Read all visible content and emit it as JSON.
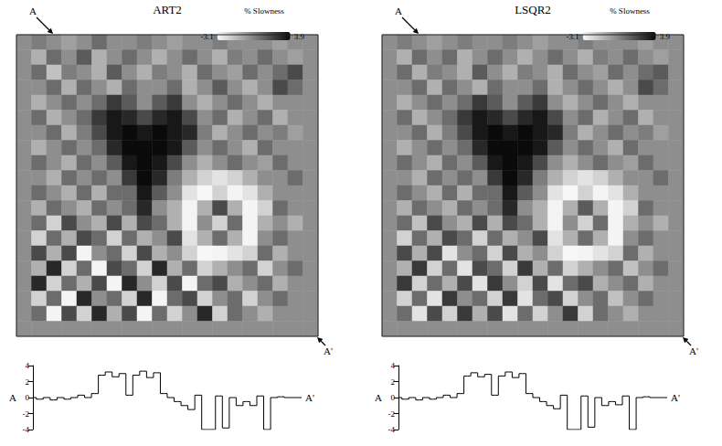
{
  "chart_data": [
    {
      "type": "heatmap",
      "title": "ART2",
      "tick_labels": false,
      "profile_ends": [
        "A",
        "A'"
      ],
      "colorbar": {
        "label": "% Slowness",
        "range": [
          -3.1,
          3.9
        ],
        "colors": [
          "#f7f7f7",
          "#0a0a0a"
        ]
      },
      "cells": [
        [
          0,
          0.5,
          0,
          -0.5,
          0,
          1,
          0,
          0,
          0.5,
          0,
          -0.5,
          0,
          0,
          0.5,
          0,
          0,
          0,
          -0.5,
          0,
          0
        ],
        [
          0,
          -1,
          1,
          0,
          1.5,
          -1,
          0,
          1,
          0,
          -1,
          0,
          1,
          0,
          -1,
          0.5,
          0,
          1,
          0,
          -0.5,
          0
        ],
        [
          0,
          1,
          -1.5,
          0.5,
          0,
          -1,
          1.5,
          0,
          -1,
          0.5,
          0,
          -1,
          1,
          0,
          -0.5,
          1,
          0,
          1,
          2,
          0
        ],
        [
          0,
          0,
          1,
          -1,
          1,
          0,
          -1,
          1,
          0,
          0,
          1,
          -1,
          0,
          1.5,
          0,
          -1,
          0,
          2,
          1,
          0
        ],
        [
          0,
          -1,
          0,
          1,
          0,
          1,
          2.5,
          1.5,
          0,
          1.5,
          2.5,
          0,
          -1,
          0,
          1,
          0,
          -1,
          0,
          0,
          0
        ],
        [
          0,
          1,
          -1,
          0,
          1,
          2.5,
          3.5,
          3,
          2,
          3,
          3.5,
          2,
          0,
          1,
          -1,
          0,
          1,
          -1,
          0,
          0
        ],
        [
          0,
          0,
          1,
          -1,
          0.5,
          2,
          3.5,
          3.9,
          3.5,
          3.9,
          3.5,
          3,
          0.5,
          -1,
          0,
          1,
          0,
          0.5,
          -0.5,
          0
        ],
        [
          0,
          -1,
          0,
          1,
          0,
          1,
          3,
          3.9,
          3.9,
          3.9,
          3.5,
          1.5,
          0,
          1,
          0,
          -1,
          1,
          0,
          0,
          0
        ],
        [
          0,
          1,
          0,
          -1,
          1,
          0,
          1.5,
          3.5,
          3.9,
          3.5,
          2,
          0,
          -1,
          0,
          1,
          0,
          -0.5,
          1,
          0,
          0
        ],
        [
          0,
          0,
          -1,
          1,
          0,
          1,
          0,
          2.5,
          3.9,
          3,
          0.5,
          -1,
          -2,
          -2.5,
          -2,
          -1,
          0,
          0,
          1,
          0
        ],
        [
          0,
          1,
          0,
          -1,
          1,
          -1,
          1,
          1,
          3.5,
          1.5,
          0,
          -2.5,
          -3.1,
          -2,
          -3,
          -2.5,
          -1,
          0,
          0,
          0
        ],
        [
          0,
          -1,
          1,
          0,
          -1,
          1,
          0,
          1,
          3,
          0,
          -1,
          -3,
          -1,
          2,
          -1,
          -3,
          -2,
          1,
          0,
          0
        ],
        [
          0,
          1,
          -2,
          2,
          0,
          -1,
          2,
          -1,
          2,
          1,
          -1,
          -3,
          0,
          -2,
          1,
          -3,
          -1,
          0,
          -1,
          0
        ],
        [
          0,
          -2,
          1,
          -1,
          2,
          1,
          -2,
          1,
          -1,
          0,
          2,
          -2.5,
          -1,
          1,
          -1,
          -3,
          0,
          1,
          0,
          0
        ],
        [
          0,
          2,
          -1,
          2,
          -3,
          0,
          1,
          -2,
          2,
          -1,
          0,
          -2,
          -3.1,
          -3,
          -2.5,
          -2,
          1,
          -1,
          0,
          0
        ],
        [
          0,
          -1,
          3,
          -2,
          1,
          -3,
          2,
          1,
          -2,
          3,
          -1,
          1,
          -2,
          -1,
          0,
          1,
          -2,
          0,
          1,
          0
        ],
        [
          0,
          3,
          -2,
          1,
          -1,
          2,
          -3,
          3,
          0,
          -2,
          2,
          -3,
          1,
          2,
          -1,
          0,
          1,
          -1,
          0,
          0
        ],
        [
          0,
          -2,
          1,
          -3,
          3,
          0,
          1,
          -2,
          3,
          -3,
          1,
          2,
          -2,
          0,
          1,
          -2,
          0,
          1,
          0,
          0
        ],
        [
          0,
          1,
          -3,
          2,
          -2,
          3,
          -1,
          2,
          -3,
          1,
          -2,
          0,
          3,
          -2,
          1,
          0,
          -1,
          0,
          0,
          0
        ],
        [
          0,
          0,
          0,
          0,
          0,
          0,
          0,
          0,
          0,
          0,
          0,
          0,
          0,
          0,
          0,
          0,
          0,
          0,
          0,
          0
        ]
      ]
    },
    {
      "type": "heatmap",
      "title": "LSQR2",
      "tick_labels": false,
      "profile_ends": [
        "A",
        "A'"
      ],
      "colorbar": {
        "label": "% Slowness",
        "range": [
          -3.1,
          3.9
        ],
        "colors": [
          "#f7f7f7",
          "#0a0a0a"
        ]
      },
      "cells": [
        [
          0,
          0.5,
          0,
          -0.5,
          0,
          0.5,
          0,
          0,
          0.5,
          0,
          -0.5,
          0,
          0,
          0.5,
          0,
          0,
          0,
          -0.5,
          0,
          0
        ],
        [
          0,
          -1,
          1,
          0,
          1,
          -1,
          0,
          1,
          0,
          -1,
          0,
          1,
          0,
          -1,
          0.5,
          0,
          1,
          0,
          -0.5,
          0
        ],
        [
          0,
          1,
          -1,
          0.5,
          0,
          -1,
          1.5,
          0,
          -1,
          0.5,
          0,
          -1,
          1,
          0,
          -0.5,
          1,
          0,
          1,
          1.5,
          0
        ],
        [
          0,
          0,
          1,
          -1,
          1,
          0,
          -1,
          1,
          0,
          0,
          1,
          -1,
          0,
          1,
          0,
          -1,
          0,
          2,
          1,
          0
        ],
        [
          0,
          -1,
          0,
          1,
          0,
          1,
          2.5,
          1.5,
          0,
          1.5,
          2.5,
          0,
          -1,
          0,
          1,
          0,
          -1,
          0,
          0,
          0
        ],
        [
          0,
          1,
          -1,
          0,
          1,
          2.5,
          3.5,
          3,
          2,
          3,
          3.5,
          2,
          0,
          1,
          -1,
          0,
          1,
          -1,
          0,
          0
        ],
        [
          0,
          0,
          1,
          -1,
          0.5,
          2,
          3.5,
          3.9,
          3.5,
          3.9,
          3.5,
          3,
          0.5,
          -1,
          0,
          1,
          0,
          0.5,
          -0.5,
          0
        ],
        [
          0,
          -1,
          0,
          1,
          0,
          1,
          3,
          3.9,
          3.9,
          3.9,
          3.5,
          1.5,
          0,
          1,
          0,
          -1,
          1,
          0,
          0,
          0
        ],
        [
          0,
          1,
          0,
          -1,
          1,
          0,
          1.5,
          3.5,
          3.9,
          3.5,
          2,
          0,
          -1,
          0,
          1,
          0,
          -0.5,
          1,
          0,
          0
        ],
        [
          0,
          0,
          -1,
          1,
          0,
          1,
          0,
          2.5,
          3.9,
          3,
          0.5,
          -1,
          -2,
          -2.5,
          -2,
          -1,
          0,
          0,
          1,
          0
        ],
        [
          0,
          1,
          0,
          -1,
          1,
          -1,
          1,
          1,
          3.5,
          1.5,
          0,
          -2.5,
          -3.1,
          -2,
          -3,
          -2.5,
          -1,
          0,
          0,
          0
        ],
        [
          0,
          -1,
          1,
          0,
          -1,
          1,
          0,
          1,
          3,
          0,
          -1,
          -3,
          -1,
          1.5,
          -1,
          -3,
          -2,
          1,
          0,
          0
        ],
        [
          0,
          1,
          -1.5,
          2,
          0,
          -1,
          2,
          -1,
          2,
          1,
          -1,
          -3,
          0,
          -2,
          1,
          -3,
          -1,
          0,
          -1,
          0
        ],
        [
          0,
          -2,
          1,
          -1,
          2,
          1,
          -2,
          1,
          -1,
          0,
          2,
          -2.5,
          -1,
          1,
          -1,
          -3,
          0,
          1,
          0,
          0
        ],
        [
          0,
          2,
          -1,
          2,
          -2.5,
          0,
          1,
          -2,
          2,
          -1,
          0,
          -2,
          -3.1,
          -3,
          -2.5,
          -2,
          1,
          -1,
          0,
          0
        ],
        [
          0,
          -1,
          2.5,
          -2,
          1,
          -2.5,
          2,
          1,
          -2,
          2.5,
          -1,
          1,
          -2,
          -1,
          0,
          1,
          -1.5,
          0,
          1,
          0
        ],
        [
          0,
          2.5,
          -2,
          1,
          -1,
          2,
          -2.5,
          2.5,
          0,
          -2,
          2,
          -2.5,
          1,
          2,
          -1,
          0,
          1,
          -1,
          0,
          0
        ],
        [
          0,
          -2,
          1,
          -2.5,
          2.5,
          0,
          1,
          -2,
          2.5,
          -2.5,
          1,
          2,
          -2,
          0,
          1,
          -1.5,
          0,
          1,
          0,
          0
        ],
        [
          0,
          1,
          -2.5,
          2,
          -2,
          2.5,
          -1,
          2,
          -2.5,
          1,
          -2,
          0,
          2.5,
          -2,
          1,
          0,
          -1,
          0,
          0,
          0
        ],
        [
          0,
          0,
          0,
          0,
          0,
          0,
          0,
          0,
          0,
          0,
          0,
          0,
          0,
          0,
          0,
          0,
          0,
          0,
          0,
          0
        ]
      ]
    },
    {
      "type": "line",
      "line_style": "step",
      "color": "#000000",
      "tick_labels": "y",
      "end_labels": [
        "A",
        "A'"
      ],
      "categories": [
        null,
        null,
        null,
        null,
        null,
        null,
        null,
        null,
        null,
        null,
        null,
        null,
        null,
        null,
        null,
        null,
        null,
        null,
        null,
        null,
        null,
        null,
        null,
        null,
        null,
        null,
        null,
        null,
        null,
        null,
        null,
        null,
        null,
        null,
        null,
        null,
        null,
        null,
        null,
        null
      ],
      "values": [
        0,
        -0.2,
        0,
        -0.3,
        0,
        -0.2,
        0,
        0.3,
        0,
        0.5,
        2.8,
        3.2,
        2.6,
        3,
        0.3,
        2.8,
        3.3,
        2.5,
        3.1,
        0.5,
        0,
        -0.5,
        -1,
        -1.5,
        0.3,
        -4,
        -4,
        0.2,
        -3.8,
        0,
        -1,
        -0.5,
        -1,
        0.2,
        -4,
        0,
        0.1,
        0,
        0,
        0
      ],
      "ylim": [
        -4,
        4
      ],
      "yticks": [
        -4,
        -2,
        0,
        2,
        4
      ]
    },
    {
      "type": "line",
      "line_style": "step",
      "color": "#000000",
      "tick_labels": "y",
      "end_labels": [
        "A",
        "A'"
      ],
      "categories": [
        null,
        null,
        null,
        null,
        null,
        null,
        null,
        null,
        null,
        null,
        null,
        null,
        null,
        null,
        null,
        null,
        null,
        null,
        null,
        null,
        null,
        null,
        null,
        null,
        null,
        null,
        null,
        null,
        null,
        null,
        null,
        null,
        null,
        null,
        null,
        null,
        null,
        null,
        null,
        null
      ],
      "values": [
        0,
        -0.2,
        0,
        -0.3,
        0,
        -0.2,
        0,
        0.3,
        0,
        0.5,
        2.7,
        3.1,
        2.6,
        2.9,
        0.3,
        2.7,
        3.2,
        2.5,
        3,
        0.5,
        0,
        -0.5,
        -1,
        -1.4,
        0.3,
        -4,
        -4,
        0.2,
        -3.7,
        0,
        -1,
        -0.5,
        -0.9,
        0.2,
        -4,
        0,
        0.1,
        0,
        0,
        0
      ],
      "ylim": [
        -4,
        4
      ],
      "yticks": [
        -4,
        -2,
        0,
        2,
        4
      ]
    }
  ]
}
